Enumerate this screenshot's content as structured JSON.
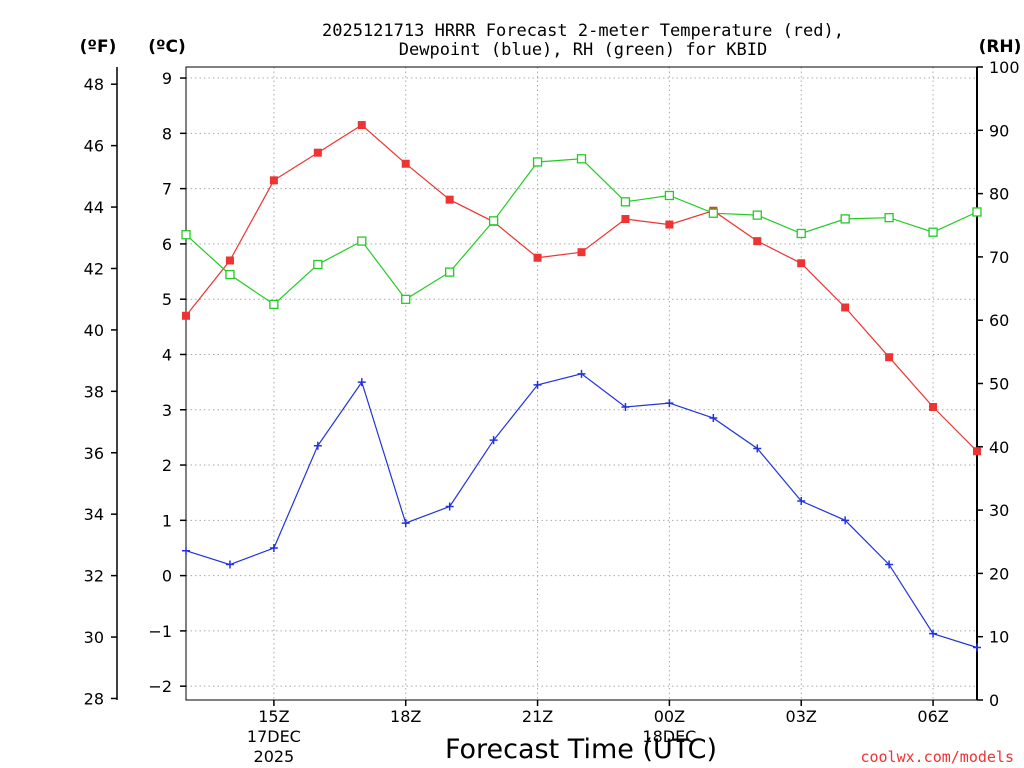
{
  "chart_data": {
    "type": "line",
    "title_line1": "2025121713 HRRR Forecast 2-meter Temperature (red),",
    "title_line2": "Dewpoint (blue), RH (green) for KBID",
    "xlabel": "Forecast Time (UTC)",
    "left_axis_f_label": "(ºF)",
    "left_axis_c_label": "(ºC)",
    "right_axis_label": "(RH)",
    "credit": "coolwx.com/models",
    "x_hours": [
      13,
      14,
      15,
      16,
      17,
      18,
      19,
      20,
      21,
      22,
      23,
      24,
      25,
      26,
      27,
      28,
      29,
      30,
      31
    ],
    "x_range": [
      13,
      31
    ],
    "celsius_range": [
      -2.25,
      9.2
    ],
    "fahrenheit_ticks": [
      28,
      30,
      32,
      34,
      36,
      38,
      40,
      42,
      44,
      46,
      48
    ],
    "celsius_ticks": [
      "−2",
      "−1",
      "0",
      "1",
      "2",
      "3",
      "4",
      "5",
      "6",
      "7",
      "8",
      "9"
    ],
    "celsius_tick_values": [
      -2,
      -1,
      0,
      1,
      2,
      3,
      4,
      5,
      6,
      7,
      8,
      9
    ],
    "rh_range": [
      0,
      100
    ],
    "rh_ticks": [
      0,
      10,
      20,
      30,
      40,
      50,
      60,
      70,
      80,
      90,
      100
    ],
    "x_ticks": [
      {
        "hour": 15,
        "label": "15Z",
        "date": "17DEC",
        "year": "2025"
      },
      {
        "hour": 18,
        "label": "18Z",
        "date": "",
        "year": ""
      },
      {
        "hour": 21,
        "label": "21Z",
        "date": "",
        "year": ""
      },
      {
        "hour": 24,
        "label": "00Z",
        "date": "18DEC",
        "year": ""
      },
      {
        "hour": 27,
        "label": "03Z",
        "date": "",
        "year": ""
      },
      {
        "hour": 30,
        "label": "06Z",
        "date": "",
        "year": ""
      }
    ],
    "series": [
      {
        "name": "Temperature",
        "color": "#ee3333",
        "marker": "filled-square",
        "axis": "celsius",
        "values": [
          4.7,
          5.7,
          7.15,
          7.65,
          8.15,
          7.45,
          6.8,
          6.4,
          5.75,
          5.85,
          6.45,
          6.35,
          6.6,
          6.05,
          5.65,
          4.85,
          3.95,
          3.05,
          2.25
        ]
      },
      {
        "name": "Dewpoint",
        "color": "#2233dd",
        "marker": "plus",
        "axis": "celsius",
        "values": [
          0.45,
          0.2,
          0.5,
          2.35,
          3.5,
          0.95,
          1.25,
          2.45,
          3.45,
          3.65,
          3.05,
          3.12,
          2.85,
          2.3,
          1.35,
          1.0,
          0.2,
          -1.05,
          -1.3
        ]
      },
      {
        "name": "RH",
        "color": "#22cc22",
        "marker": "open-square",
        "axis": "rh",
        "values": [
          73.5,
          67.2,
          62.5,
          68.8,
          72.5,
          63.3,
          67.6,
          75.7,
          85.0,
          85.5,
          78.7,
          79.7,
          76.9,
          76.6,
          73.7,
          76.0,
          76.2,
          73.9,
          77.1
        ]
      }
    ]
  }
}
